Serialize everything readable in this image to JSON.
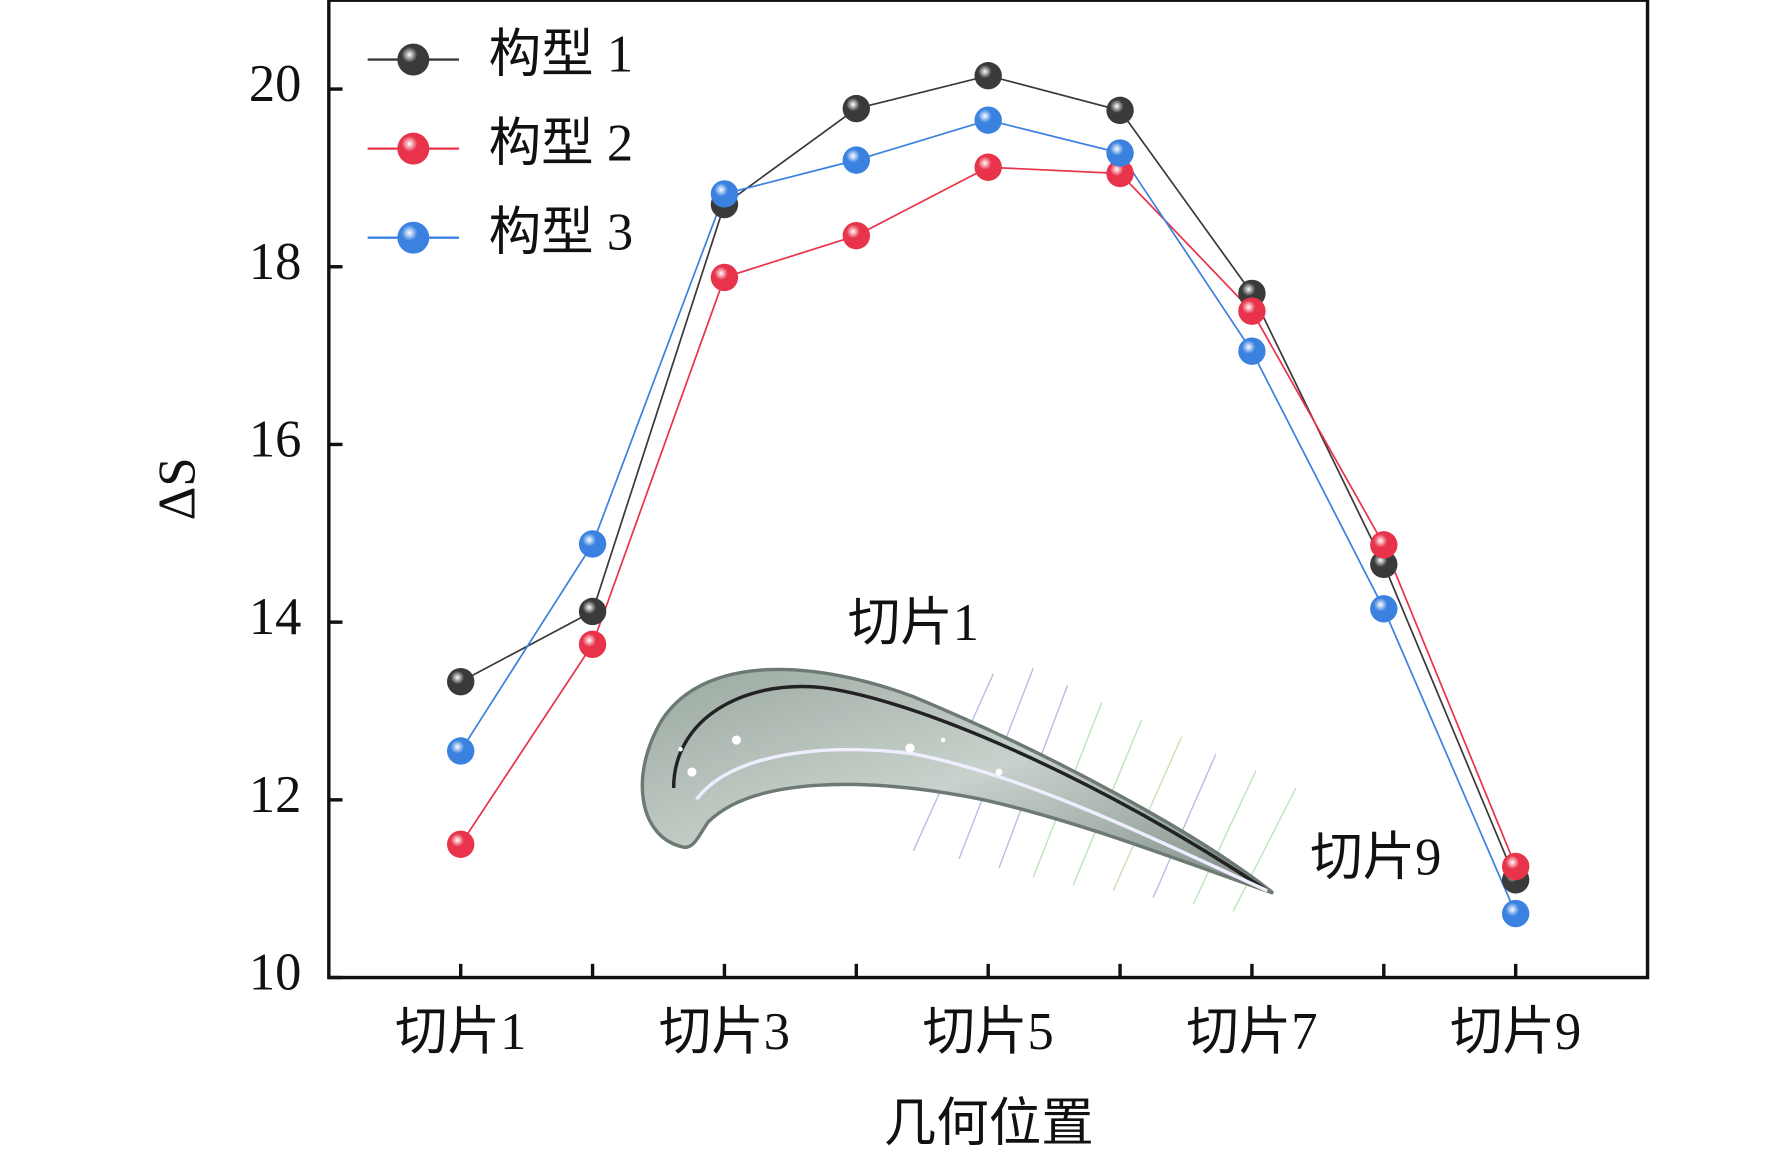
{
  "chart_data": {
    "type": "line",
    "y_label": "ΔS",
    "x_label": "几何位置",
    "categories": [
      "切片1",
      null,
      "切片3",
      null,
      "切片5",
      null,
      "切片7",
      null,
      "切片9"
    ],
    "series": [
      {
        "name": "构型 1",
        "color": "#3a3a3a",
        "values": [
          13.33,
          14.12,
          18.7,
          19.78,
          20.15,
          19.76,
          17.7,
          14.65,
          11.1
        ]
      },
      {
        "name": "构型 2",
        "color": "#e8334a",
        "values": [
          11.5,
          13.75,
          17.88,
          18.35,
          19.12,
          19.05,
          17.5,
          14.87,
          11.25
        ]
      },
      {
        "name": "构型 3",
        "color": "#3b82e0",
        "values": [
          12.55,
          14.88,
          18.82,
          19.2,
          19.65,
          19.28,
          17.05,
          14.15,
          10.72
        ]
      }
    ],
    "ylim": [
      10,
      21
    ],
    "yticks": [
      10,
      12,
      14,
      16,
      18,
      20
    ],
    "legend": "upper-left",
    "annotations": [
      "切片1",
      "切片9"
    ]
  }
}
